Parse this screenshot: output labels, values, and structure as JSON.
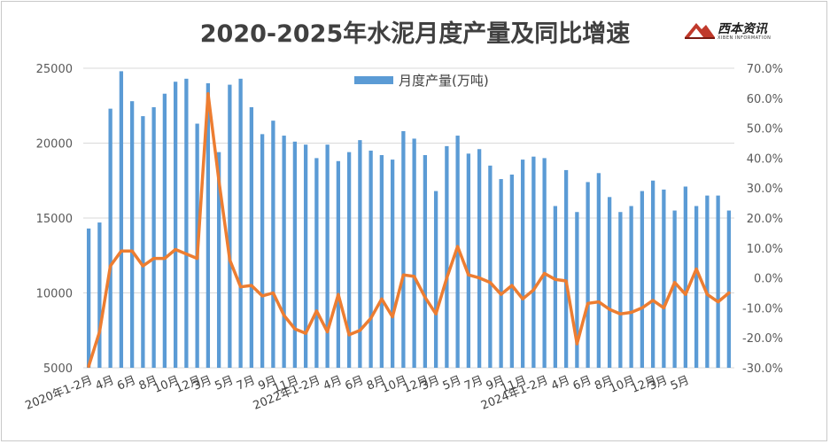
{
  "title": "2020-2025年水泥月度产量及同比增速",
  "logo": {
    "name": "西本资讯",
    "sub": "XIBEN INFORMATION"
  },
  "chart_data": {
    "type": "bar+line",
    "title": "2020-2025年水泥月度产量及同比增速",
    "legend": [
      {
        "name": "月度产量(万吨)",
        "type": "bar",
        "color": "#5b9bd5"
      }
    ],
    "legend_position": "top-center",
    "y_left": {
      "min": 5000,
      "max": 25000,
      "ticks": [
        5000,
        10000,
        15000,
        20000,
        25000
      ],
      "tick_labels": [
        "5000",
        "10000",
        "15000",
        "20000",
        "25000"
      ]
    },
    "y_right": {
      "min": -0.3,
      "max": 0.7,
      "ticks": [
        -0.3,
        -0.2,
        -0.1,
        0.0,
        0.1,
        0.2,
        0.3,
        0.4,
        0.5,
        0.6,
        0.7
      ],
      "tick_labels": [
        "-30.0%",
        "-20.0%",
        "-10.0%",
        "0.0%",
        "10.0%",
        "20.0%",
        "30.0%",
        "40.0%",
        "50.0%",
        "60.0%",
        "70.0%"
      ]
    },
    "x_tick_labels": [
      {
        "i": 0,
        "text": "2020年1-2月"
      },
      {
        "i": 2,
        "text": "4月"
      },
      {
        "i": 4,
        "text": "6月"
      },
      {
        "i": 6,
        "text": "8月"
      },
      {
        "i": 8,
        "text": "10月"
      },
      {
        "i": 10,
        "text": "12月"
      },
      {
        "i": 11,
        "text": "3月"
      },
      {
        "i": 13,
        "text": "5月"
      },
      {
        "i": 15,
        "text": "7月"
      },
      {
        "i": 17,
        "text": "9月"
      },
      {
        "i": 19,
        "text": "11月"
      },
      {
        "i": 21,
        "text": "2022年1-2月"
      },
      {
        "i": 23,
        "text": "4月"
      },
      {
        "i": 25,
        "text": "6月"
      },
      {
        "i": 27,
        "text": "8月"
      },
      {
        "i": 29,
        "text": "10月"
      },
      {
        "i": 31,
        "text": "12月"
      },
      {
        "i": 32,
        "text": "3月"
      },
      {
        "i": 34,
        "text": "5月"
      },
      {
        "i": 36,
        "text": "7月"
      },
      {
        "i": 38,
        "text": "9月"
      },
      {
        "i": 40,
        "text": "11月"
      },
      {
        "i": 42,
        "text": "2024年1-2月"
      },
      {
        "i": 44,
        "text": "4月"
      },
      {
        "i": 46,
        "text": "6月"
      },
      {
        "i": 48,
        "text": "8月"
      },
      {
        "i": 50,
        "text": "10月"
      },
      {
        "i": 52,
        "text": "12月"
      },
      {
        "i": 53,
        "text": "3月"
      },
      {
        "i": 55,
        "text": "5月"
      }
    ],
    "bar_values": [
      14300,
      14700,
      22300,
      24800,
      22800,
      21800,
      22400,
      23300,
      24100,
      24300,
      21300,
      24000,
      19400,
      23900,
      24300,
      22400,
      20600,
      21500,
      20500,
      20100,
      19900,
      19000,
      19900,
      18800,
      19400,
      20200,
      19500,
      19200,
      18900,
      20800,
      20300,
      19200,
      16800,
      19800,
      20500,
      19300,
      19600,
      18500,
      17600,
      17900,
      18900,
      19100,
      19000,
      15800,
      18200,
      15400,
      17400,
      18000,
      16400,
      15400,
      15800,
      16800,
      17500,
      16900,
      15500,
      17100,
      15800,
      16500,
      16500,
      15500
    ],
    "line_values": [
      -0.295,
      -0.18,
      0.04,
      0.09,
      0.09,
      0.04,
      0.065,
      0.065,
      0.095,
      0.08,
      0.065,
      0.615,
      0.325,
      0.06,
      -0.03,
      -0.025,
      -0.06,
      -0.05,
      -0.125,
      -0.17,
      -0.185,
      -0.11,
      -0.18,
      -0.055,
      -0.19,
      -0.175,
      -0.135,
      -0.07,
      -0.13,
      0.01,
      0.005,
      -0.065,
      -0.12,
      0.0,
      0.105,
      0.01,
      0.0,
      -0.015,
      -0.055,
      -0.025,
      -0.07,
      -0.04,
      0.015,
      -0.005,
      -0.01,
      -0.22,
      -0.085,
      -0.08,
      -0.105,
      -0.12,
      -0.115,
      -0.1,
      -0.075,
      -0.1,
      -0.015,
      -0.055,
      0.03,
      -0.055,
      -0.08,
      -0.05
    ],
    "bar_color": "#5b9bd5",
    "line_color": "#ed7d31",
    "grid": "horizontal"
  }
}
